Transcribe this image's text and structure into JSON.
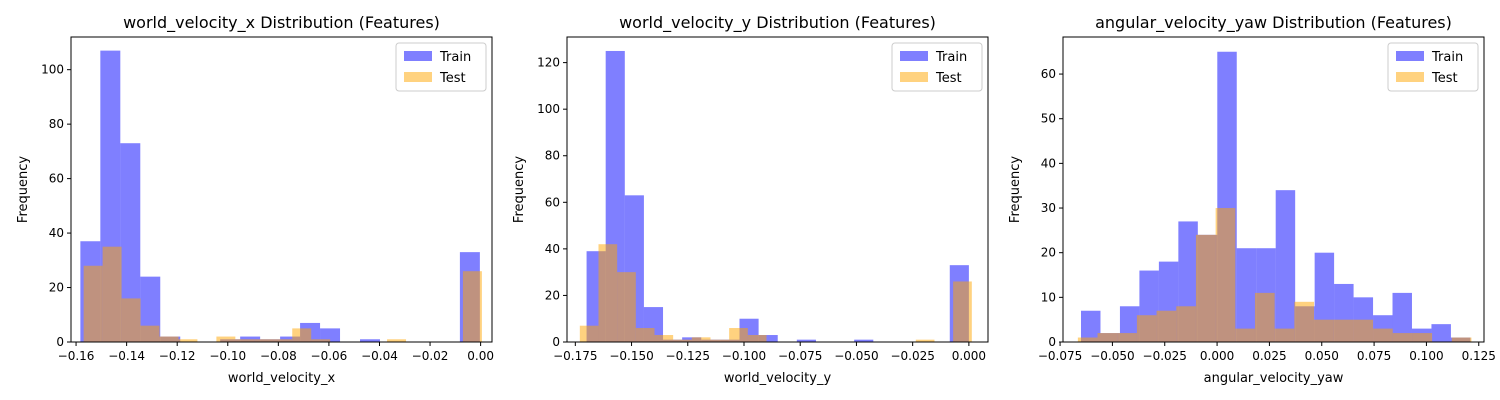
{
  "colors": {
    "train": "#0000ff",
    "test": "#ffa500"
  },
  "chart_data": [
    {
      "type": "bar",
      "subtype": "overlaid-histogram",
      "title": "world_velocity_x Distribution (Features)",
      "xlabel": "world_velocity_x",
      "ylabel": "Frequency",
      "xlim": [
        -0.162,
        0.0045
      ],
      "ylim": [
        0,
        112
      ],
      "xticks": [
        -0.16,
        -0.14,
        -0.12,
        -0.1,
        -0.08,
        -0.06,
        -0.04,
        -0.02,
        0.0
      ],
      "xtick_labels": [
        "−0.16",
        "−0.14",
        "−0.12",
        "−0.10",
        "−0.08",
        "−0.06",
        "−0.04",
        "−0.02",
        "0.00"
      ],
      "yticks": [
        0,
        20,
        40,
        60,
        80,
        100
      ],
      "ytick_labels": [
        "0",
        "20",
        "40",
        "60",
        "80",
        "100"
      ],
      "legend": {
        "position": "top-right",
        "entries": [
          "Train",
          "Test"
        ]
      },
      "series": [
        {
          "name": "Train",
          "color": "#0000ff",
          "opacity": 0.5,
          "bin_edges": [
            -0.1583,
            -0.1504,
            -0.1425,
            -0.1346,
            -0.1267,
            -0.1188,
            -0.1109,
            -0.103,
            -0.0951,
            -0.0872,
            -0.0793,
            -0.0714,
            -0.0635,
            -0.0556,
            -0.0477,
            -0.0398,
            -0.0319,
            -0.024,
            -0.0161,
            -0.0082,
            -0.0003
          ],
          "values": [
            37,
            107,
            73,
            24,
            2,
            0,
            0,
            1,
            2,
            1,
            2,
            7,
            5,
            0,
            1,
            0,
            0,
            0,
            0,
            33
          ]
        },
        {
          "name": "Test",
          "color": "#ffa500",
          "opacity": 0.5,
          "bin_edges": [
            -0.157,
            -0.1495,
            -0.142,
            -0.1345,
            -0.127,
            -0.1195,
            -0.112,
            -0.1045,
            -0.097,
            -0.0895,
            -0.082,
            -0.0745,
            -0.067,
            -0.0595,
            -0.052,
            -0.0445,
            -0.037,
            -0.0295,
            -0.022,
            -0.0145,
            -0.007,
            0.0005
          ],
          "values": [
            28,
            35,
            16,
            6,
            2,
            1,
            0,
            2,
            1,
            1,
            1,
            5,
            1,
            0,
            0,
            0,
            1,
            0,
            0,
            0,
            26
          ]
        }
      ]
    },
    {
      "type": "bar",
      "subtype": "overlaid-histogram",
      "title": "world_velocity_y Distribution (Features)",
      "xlabel": "world_velocity_y",
      "ylabel": "Frequency",
      "xlim": [
        -0.1787,
        0.0085
      ],
      "ylim": [
        0,
        131
      ],
      "xticks": [
        -0.175,
        -0.15,
        -0.125,
        -0.1,
        -0.075,
        -0.05,
        -0.025,
        0.0
      ],
      "xtick_labels": [
        "−0.175",
        "−0.150",
        "−0.125",
        "−0.100",
        "−0.075",
        "−0.050",
        "−0.025",
        "0.000"
      ],
      "yticks": [
        0,
        20,
        40,
        60,
        80,
        100,
        120
      ],
      "ytick_labels": [
        "0",
        "20",
        "40",
        "60",
        "80",
        "100",
        "120"
      ],
      "legend": {
        "position": "top-right",
        "entries": [
          "Train",
          "Test"
        ]
      },
      "series": [
        {
          "name": "Train",
          "color": "#0000ff",
          "opacity": 0.5,
          "bin_edges": [
            -0.17,
            -0.1615,
            -0.153,
            -0.1445,
            -0.136,
            -0.1275,
            -0.119,
            -0.1105,
            -0.102,
            -0.0935,
            -0.085,
            -0.0765,
            -0.068,
            -0.0595,
            -0.051,
            -0.0425,
            -0.034,
            -0.0255,
            -0.017,
            -0.0085,
            0.0
          ],
          "values": [
            39,
            125,
            63,
            15,
            1,
            2,
            1,
            1,
            10,
            3,
            0,
            1,
            0,
            0,
            1,
            0,
            0,
            0,
            0,
            33
          ]
        },
        {
          "name": "Test",
          "color": "#ffa500",
          "opacity": 0.5,
          "bin_edges": [
            -0.173,
            -0.1647,
            -0.1564,
            -0.1481,
            -0.1398,
            -0.1315,
            -0.1232,
            -0.1149,
            -0.1066,
            -0.0983,
            -0.09,
            -0.0817,
            -0.0734,
            -0.0651,
            -0.0568,
            -0.0485,
            -0.0402,
            -0.0319,
            -0.0236,
            -0.0153,
            -0.007,
            0.0013
          ],
          "values": [
            7,
            42,
            30,
            6,
            3,
            1,
            2,
            1,
            6,
            3,
            0,
            0,
            0,
            0,
            0,
            0,
            0,
            0,
            1,
            0,
            26
          ]
        }
      ]
    },
    {
      "type": "bar",
      "subtype": "overlaid-histogram",
      "title": "angular_velocity_yaw Distribution (Features)",
      "xlabel": "angular_velocity_yaw",
      "ylabel": "Frequency",
      "xlim": [
        -0.0736,
        0.1275
      ],
      "ylim": [
        0,
        68.3
      ],
      "xticks": [
        -0.075,
        -0.05,
        -0.025,
        0.0,
        0.025,
        0.05,
        0.075,
        0.1,
        0.125
      ],
      "xtick_labels": [
        "−0.075",
        "−0.050",
        "−0.025",
        "0.000",
        "0.025",
        "0.050",
        "0.075",
        "0.100",
        "0.125"
      ],
      "yticks": [
        0,
        10,
        20,
        30,
        40,
        50,
        60
      ],
      "ytick_labels": [
        "0",
        "10",
        "20",
        "30",
        "40",
        "50",
        "60"
      ],
      "legend": {
        "position": "top-right",
        "entries": [
          "Train",
          "Test"
        ]
      },
      "series": [
        {
          "name": "Train",
          "color": "#0000ff",
          "opacity": 0.5,
          "bin_edges": [
            -0.065,
            -0.0557,
            -0.0464,
            -0.0371,
            -0.0278,
            -0.0185,
            -0.0092,
            0.0001,
            0.0094,
            0.0187,
            0.028,
            0.0373,
            0.0466,
            0.0559,
            0.0652,
            0.0745,
            0.0838,
            0.0931,
            0.1024,
            0.1117,
            0.121
          ],
          "values": [
            7,
            2,
            8,
            16,
            18,
            27,
            24,
            65,
            21,
            21,
            34,
            8,
            20,
            13,
            10,
            6,
            11,
            3,
            4,
            1
          ]
        },
        {
          "name": "Test",
          "color": "#ffa500",
          "opacity": 0.5,
          "bin_edges": [
            -0.0665,
            -0.0571,
            -0.0477,
            -0.0383,
            -0.0289,
            -0.0195,
            -0.0101,
            -0.0007,
            0.0087,
            0.0181,
            0.0275,
            0.0369,
            0.0463,
            0.0557,
            0.0651,
            0.0745,
            0.0839,
            0.0933,
            0.1027,
            0.1121,
            0.1215
          ],
          "values": [
            1,
            2,
            2,
            6,
            7,
            8,
            24,
            30,
            3,
            11,
            3,
            9,
            5,
            5,
            5,
            3,
            2,
            2,
            0,
            1
          ]
        }
      ]
    }
  ]
}
